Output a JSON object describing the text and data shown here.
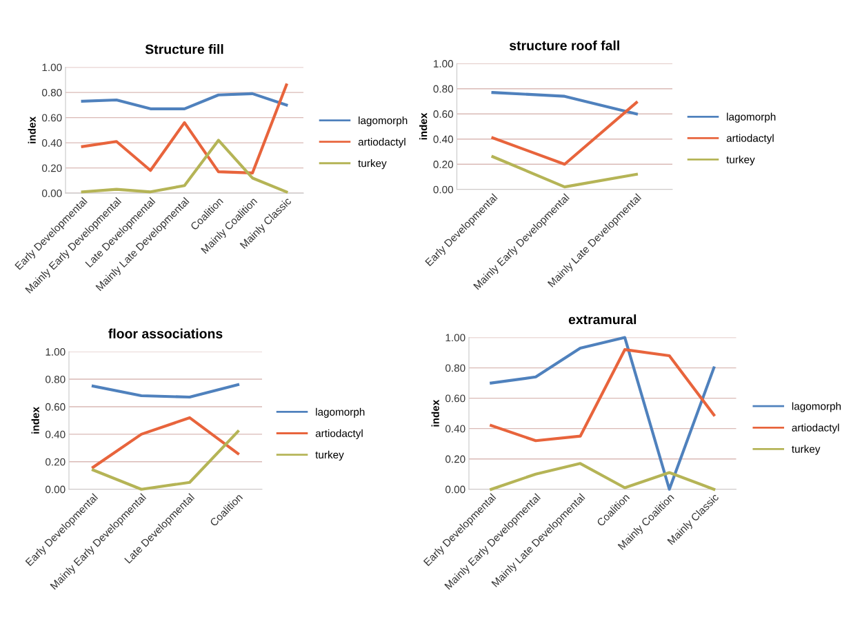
{
  "chart_data": [
    {
      "type": "line",
      "title": "Structure fill",
      "ylabel": "index",
      "categories": [
        "Early Developmental",
        "Mainly Early Developmental",
        "Late Developmental",
        "Mainly Late Developmental",
        "Coalition",
        "Mainly Coalition",
        "Mainly Classic"
      ],
      "ylim": [
        0,
        1
      ],
      "yticks": [
        {
          "value": 0,
          "label": "0.00"
        },
        {
          "value": 0.2,
          "label": "0.20"
        },
        {
          "value": 0.4,
          "label": "0.40"
        },
        {
          "value": 0.6,
          "label": "0.60"
        },
        {
          "value": 0.8,
          "label": "0.80"
        },
        {
          "value": 1,
          "label": "1.00"
        }
      ],
      "grid": "y",
      "legend": "right",
      "series": [
        {
          "name": "lagomorph",
          "color": "#4f81bd",
          "values": [
            0.73,
            0.74,
            0.67,
            0.67,
            0.78,
            0.79,
            0.7
          ]
        },
        {
          "name": "artiodactyl",
          "color": "#e8643c",
          "values": [
            0.37,
            0.41,
            0.18,
            0.56,
            0.17,
            0.16,
            0.86
          ]
        },
        {
          "name": "turkey",
          "color": "#b5b456",
          "values": [
            0.01,
            0.03,
            0.01,
            0.06,
            0.42,
            0.12,
            0.01
          ]
        }
      ]
    },
    {
      "type": "line",
      "title": "structure roof fall",
      "ylabel": "index",
      "categories": [
        "Early Developmental",
        "Mainly Early Developmental",
        "Mainly Late Developmental"
      ],
      "ylim": [
        0,
        1
      ],
      "yticks": [
        {
          "value": 0,
          "label": "0.00"
        },
        {
          "value": 0.2,
          "label": "0.20"
        },
        {
          "value": 0.4,
          "label": "0.40"
        },
        {
          "value": 0.6,
          "label": "0.60"
        },
        {
          "value": 0.8,
          "label": "0.80"
        },
        {
          "value": 1,
          "label": "1.00"
        }
      ],
      "grid": "y",
      "legend": "right",
      "series": [
        {
          "name": "lagomorph",
          "color": "#4f81bd",
          "values": [
            0.77,
            0.74,
            0.6
          ]
        },
        {
          "name": "artiodactyl",
          "color": "#e8643c",
          "values": [
            0.41,
            0.2,
            0.69
          ]
        },
        {
          "name": "turkey",
          "color": "#b5b456",
          "values": [
            0.26,
            0.02,
            0.12
          ]
        }
      ]
    },
    {
      "type": "line",
      "title": "floor associations",
      "ylabel": "index",
      "categories": [
        "Early Developmental",
        "Mainly Early Developmental",
        "Late Developmental",
        "Coalition"
      ],
      "ylim": [
        0,
        1
      ],
      "yticks": [
        {
          "value": 0,
          "label": "0.00"
        },
        {
          "value": 0.2,
          "label": "0.20"
        },
        {
          "value": 0.4,
          "label": "0.40"
        },
        {
          "value": 0.6,
          "label": "0.60"
        },
        {
          "value": 0.8,
          "label": "0.80"
        },
        {
          "value": 1,
          "label": "1.00"
        }
      ],
      "grid": "y",
      "legend": "right",
      "series": [
        {
          "name": "lagomorph",
          "color": "#4f81bd",
          "values": [
            0.75,
            0.68,
            0.67,
            0.76
          ]
        },
        {
          "name": "artiodactyl",
          "color": "#e8643c",
          "values": [
            0.16,
            0.4,
            0.52,
            0.26
          ]
        },
        {
          "name": "turkey",
          "color": "#b5b456",
          "values": [
            0.14,
            0.0,
            0.05,
            0.42
          ]
        }
      ]
    },
    {
      "type": "line",
      "title": "extramural",
      "ylabel": "index",
      "categories": [
        "Early Developmental",
        "Mainly Early Developmental",
        "Mainly Late Developmental",
        "Coalition",
        "Mainly Coalition",
        "Mainly Classic"
      ],
      "ylim": [
        0,
        1
      ],
      "yticks": [
        {
          "value": 0,
          "label": "0.00"
        },
        {
          "value": 0.2,
          "label": "0.20"
        },
        {
          "value": 0.4,
          "label": "0.40"
        },
        {
          "value": 0.6,
          "label": "0.60"
        },
        {
          "value": 0.8,
          "label": "0.80"
        },
        {
          "value": 1,
          "label": "1.00"
        }
      ],
      "grid": "y",
      "legend": "right",
      "series": [
        {
          "name": "lagomorph",
          "color": "#4f81bd",
          "values": [
            0.7,
            0.74,
            0.93,
            1.0,
            0.0,
            0.8
          ]
        },
        {
          "name": "artiodactyl",
          "color": "#e8643c",
          "values": [
            0.42,
            0.32,
            0.35,
            0.92,
            0.88,
            0.49
          ]
        },
        {
          "name": "turkey",
          "color": "#b5b456",
          "values": [
            0.0,
            0.1,
            0.17,
            0.01,
            0.11,
            0.0
          ]
        }
      ]
    }
  ]
}
